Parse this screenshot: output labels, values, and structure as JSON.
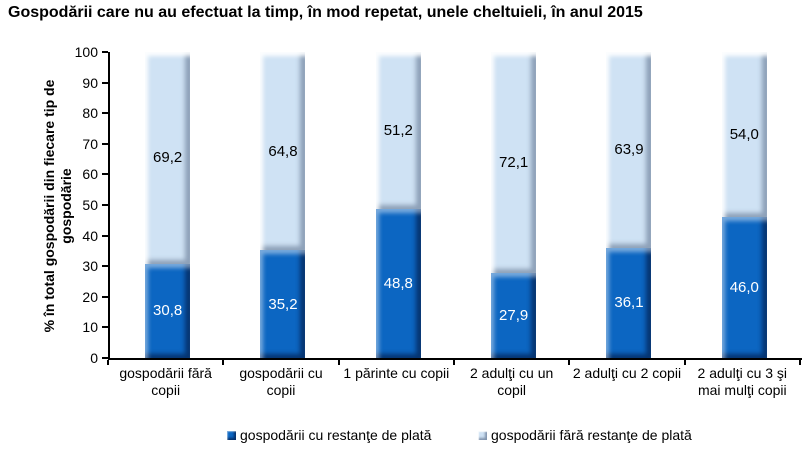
{
  "chart_data": {
    "type": "bar",
    "stacked": true,
    "title": "Gospodării care nu au efectuat la timp, în mod repetat, unele cheltuieli, în anul 2015",
    "ylabel": "% în total gospodării din fiecare tip de gospodărie",
    "ylabel_display": "% în total gospodării din fiecare tip de\ngospodărie",
    "xlabel": "",
    "ylim": [
      0,
      100
    ],
    "ytick_step": 10,
    "grid": false,
    "legend_position": "bottom",
    "categories": [
      "gospodării fără copii",
      "gospodării cu copii",
      "1 părinte cu copii",
      "2 adulţi cu un copil",
      "2 adulţi cu 2 copii",
      "2 adulţi cu 3 şi mai mulţi copii"
    ],
    "categories_display": [
      "gospodării fără\ncopii",
      "gospodării cu\ncopii",
      "1 părinte cu copii",
      "2 adulţi cu un\ncopil",
      "2 adulţi cu 2 copii",
      "2 adulţi cu 3 şi\nmai mulţi copii"
    ],
    "series": [
      {
        "name": "gospodării cu restanţe de plată",
        "color": "#0c66c2",
        "label_color": "#ffffff",
        "values": [
          30.8,
          35.2,
          48.8,
          27.9,
          36.1,
          46.0
        ],
        "value_labels": [
          "30,8",
          "35,2",
          "48,8",
          "27,9",
          "36,1",
          "46,0"
        ]
      },
      {
        "name": "gospodării fără restanţe de plată",
        "color": "#cfe2f4",
        "label_color": "#000000",
        "values": [
          69.2,
          64.8,
          51.2,
          72.1,
          63.9,
          54.0
        ],
        "value_labels": [
          "69,2",
          "64,8",
          "51,2",
          "72,1",
          "63,9",
          "54,0"
        ]
      }
    ],
    "colors": {
      "axis": "#000000",
      "background": "#ffffff",
      "text": "#000000"
    }
  }
}
